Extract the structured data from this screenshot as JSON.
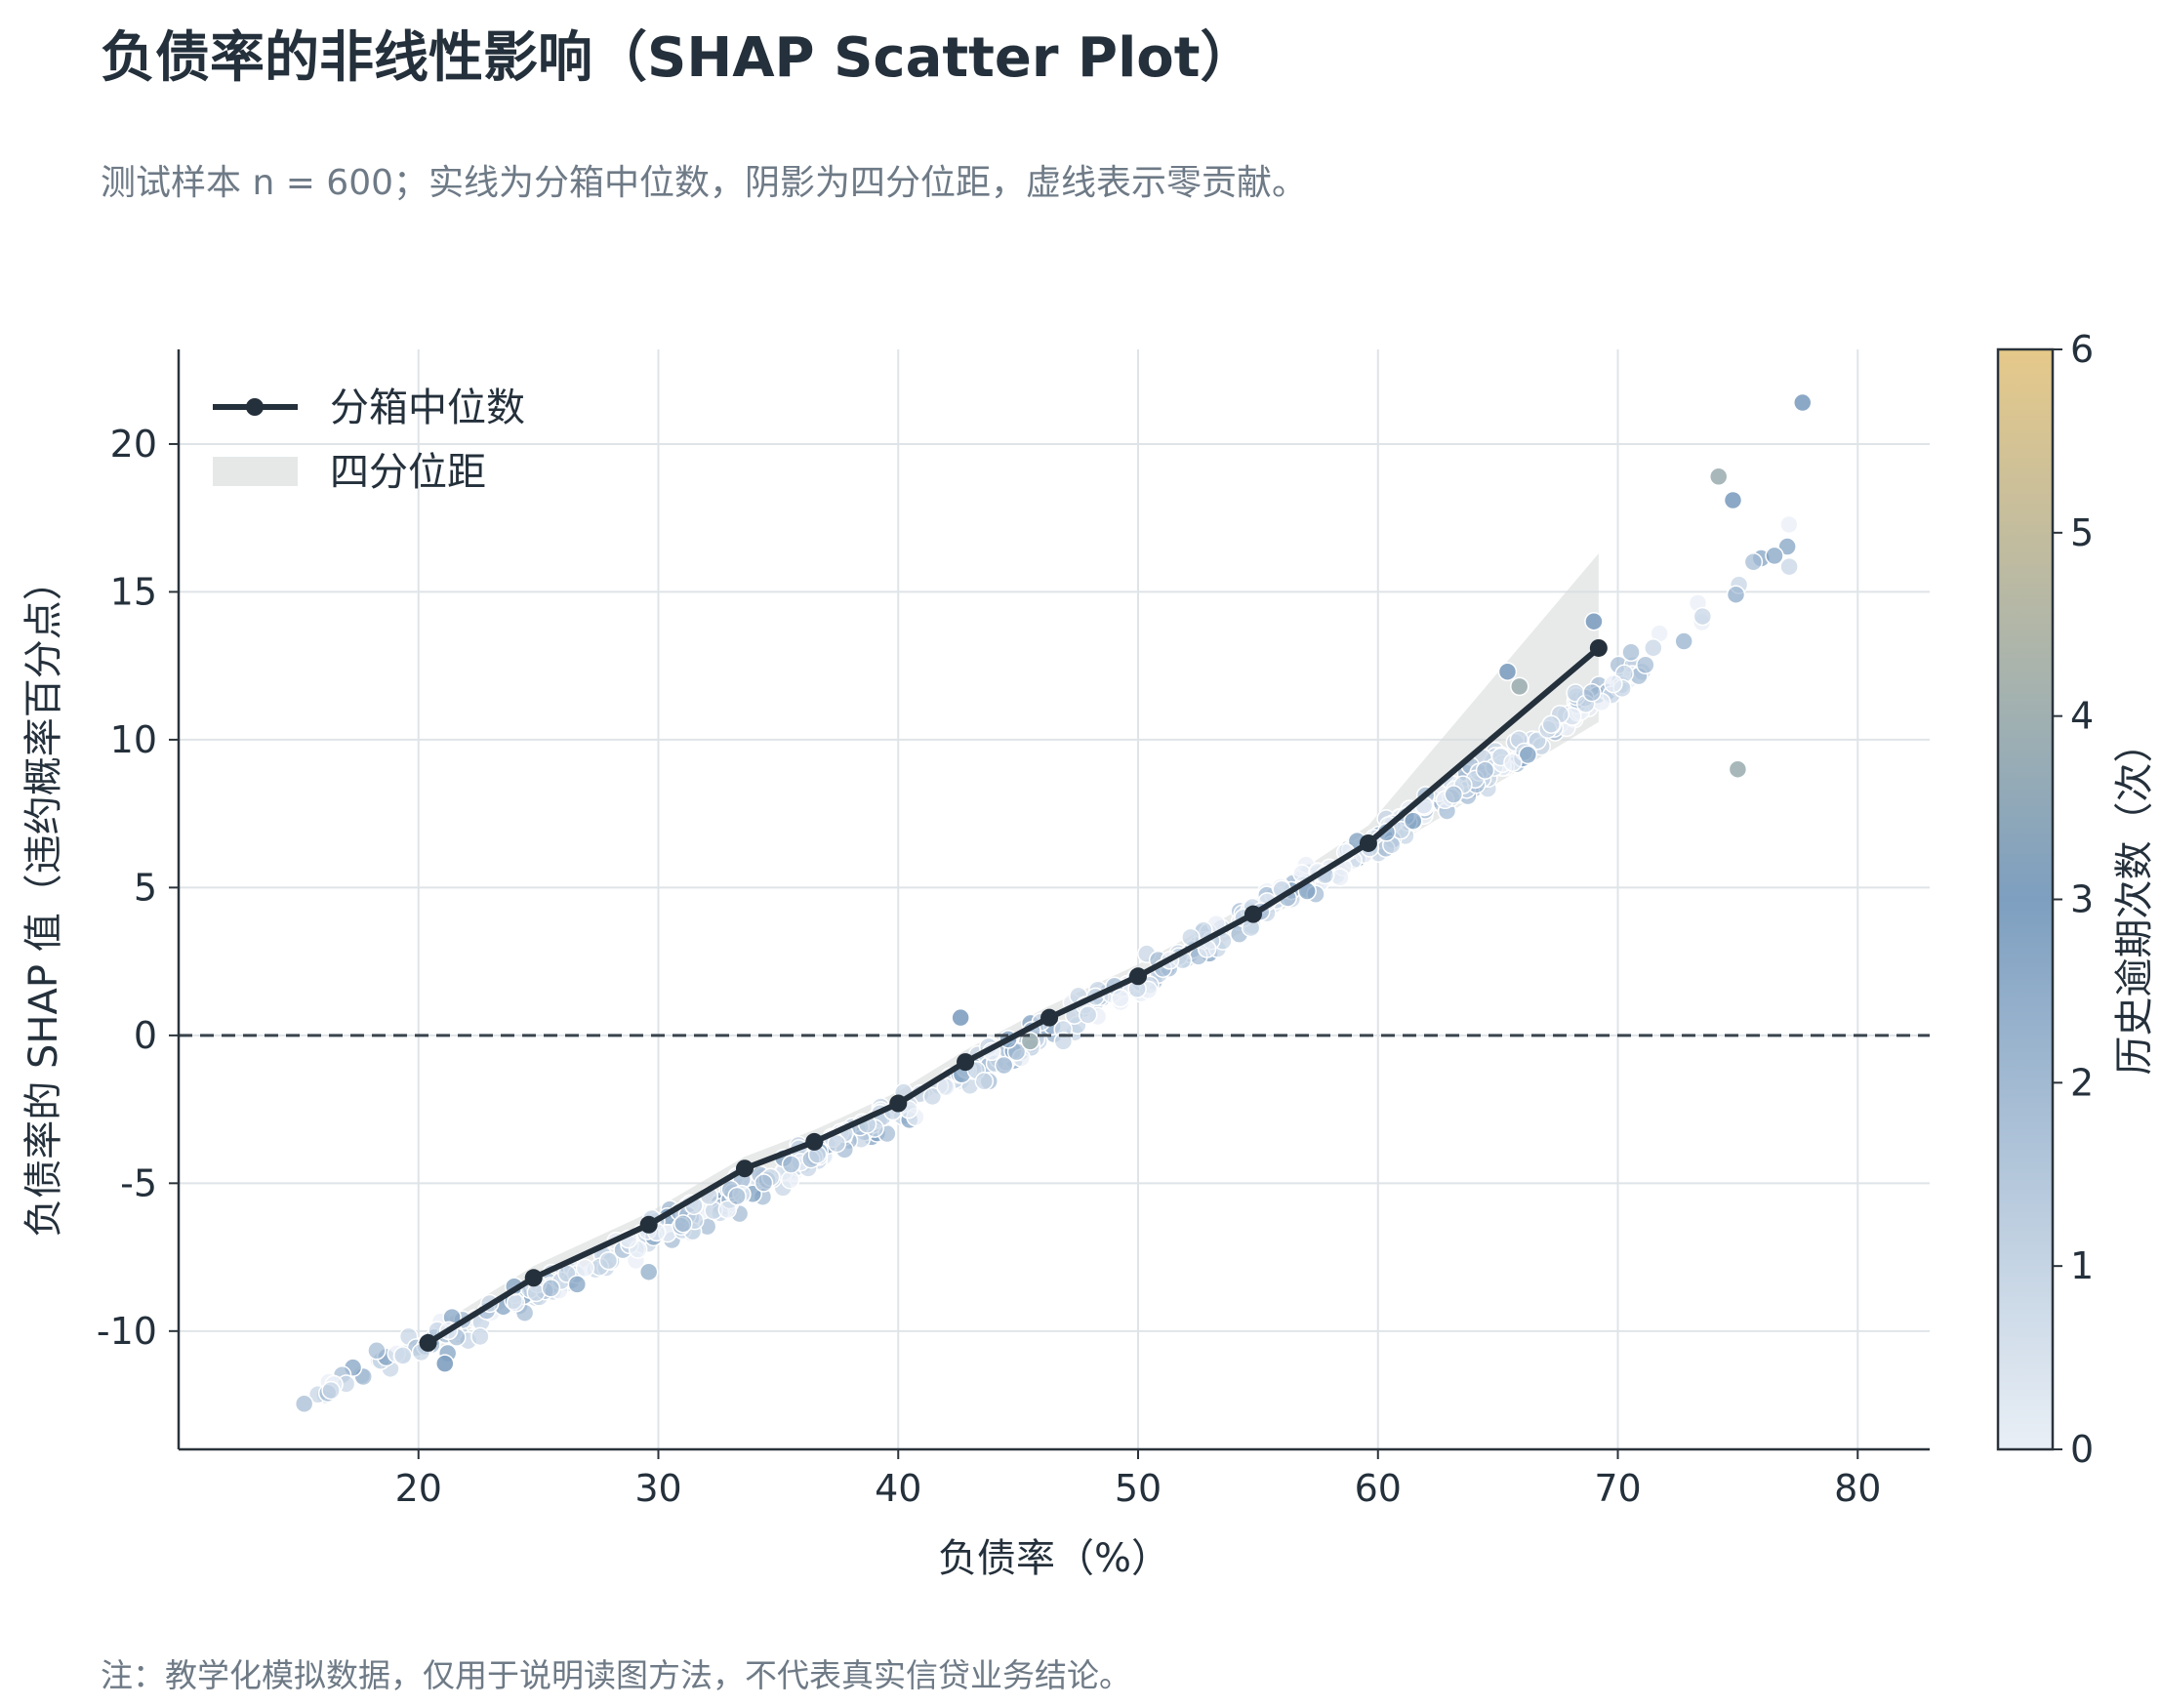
{
  "header": {
    "title": "负债率的非线性影响（SHAP Scatter Plot）",
    "subtitle": "测试样本 n = 600；实线为分箱中位数，阴影为四分位距，虚线表示零贡献。"
  },
  "footer": {
    "note": "注：教学化模拟数据，仅用于说明读图方法，不代表真实信贷业务结论。"
  },
  "chart_data": {
    "type": "scatter",
    "xlabel": "负债率（%）",
    "ylabel": "负债率的 SHAP 值（违约概率百分点）",
    "xlim": [
      10,
      83
    ],
    "ylim": [
      -14,
      23.2
    ],
    "x_ticks": [
      20,
      30,
      40,
      50,
      60,
      70,
      80
    ],
    "y_ticks": [
      -10,
      -5,
      0,
      5,
      10,
      15,
      20
    ],
    "y_tick_labels": [
      "-10",
      "-5",
      "0",
      "5",
      "10",
      "15",
      "20"
    ],
    "grid": true,
    "zero_line": {
      "y": 0,
      "style": "dashed"
    },
    "legend": {
      "placement": "top-left",
      "entries": [
        {
          "label": "分箱中位数",
          "kind": "line-marker",
          "color": "#24303b"
        },
        {
          "label": "四分位距",
          "kind": "band",
          "color": "#e6e8e8"
        }
      ]
    },
    "colorbar": {
      "label": "历史逾期次数（次）",
      "range": [
        0,
        6
      ],
      "ticks": [
        0,
        1,
        2,
        3,
        4,
        5,
        6
      ],
      "colors": [
        "#e9eff6",
        "#7e9fc0",
        "#e6c98a"
      ]
    },
    "median_line": {
      "x": [
        20.4,
        24.8,
        29.6,
        33.6,
        36.5,
        40.0,
        42.8,
        46.3,
        50.0,
        54.8,
        59.6,
        69.2
      ],
      "y": [
        -10.4,
        -8.2,
        -6.4,
        -4.5,
        -3.6,
        -2.3,
        -0.9,
        0.6,
        2.0,
        4.1,
        6.5,
        13.1
      ]
    },
    "iqr_band": {
      "x": [
        20.4,
        24.8,
        29.6,
        33.6,
        36.5,
        40.0,
        42.8,
        46.3,
        50.0,
        54.8,
        59.6,
        69.2
      ],
      "lower": [
        -10.8,
        -8.6,
        -6.8,
        -4.9,
        -4.0,
        -2.7,
        -1.3,
        0.2,
        1.6,
        3.7,
        5.9,
        10.6
      ],
      "upper": [
        -10.0,
        -7.8,
        -6.0,
        -4.1,
        -3.2,
        -1.9,
        -0.5,
        1.0,
        2.4,
        4.5,
        7.1,
        16.3
      ]
    },
    "highlight_points": [
      {
        "x": 74.2,
        "y": 18.9,
        "overdue": 4
      },
      {
        "x": 75.0,
        "y": 9.0,
        "overdue": 4
      },
      {
        "x": 65.9,
        "y": 11.8,
        "overdue": 4
      },
      {
        "x": 45.5,
        "y": -0.2,
        "overdue": 4
      },
      {
        "x": 77.7,
        "y": 21.4,
        "overdue": 3
      },
      {
        "x": 74.8,
        "y": 18.1,
        "overdue": 3
      },
      {
        "x": 65.4,
        "y": 12.3,
        "overdue": 3
      },
      {
        "x": 69.0,
        "y": 14.0,
        "overdue": 3
      },
      {
        "x": 42.6,
        "y": 0.6,
        "overdue": 3
      },
      {
        "x": 21.1,
        "y": -11.1,
        "overdue": 3
      },
      {
        "x": 29.6,
        "y": -8.0,
        "overdue": 2
      }
    ]
  }
}
